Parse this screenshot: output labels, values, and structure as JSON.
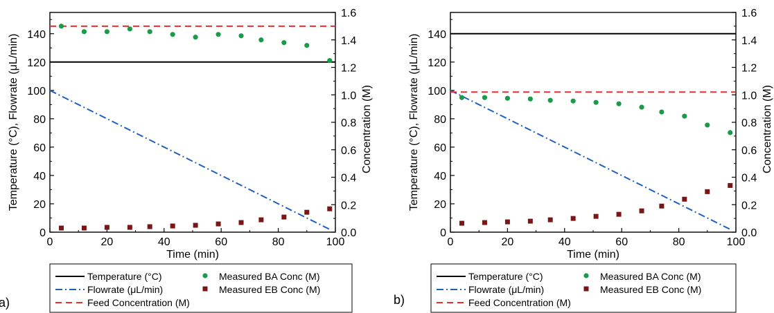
{
  "colors": {
    "temperature": "#000000",
    "flowrate": "#1f5fbf",
    "feed": "#ee2a2a",
    "ba": "#1a9a4a",
    "eb": "#7a1616"
  },
  "legend": {
    "temperature": "Temperature (°C)",
    "flowrate": "Flowrate (μL/min)",
    "feed": "Feed Concentration (M)",
    "ba": "Measured BA Conc (M)",
    "eb": "Measured EB Conc (M)"
  },
  "chart_data": [
    {
      "panel": "a)",
      "type": "line",
      "xlabel": "Time (min)",
      "ylabel": "Temperature (°C), Flowrate (μL/min)",
      "y2label": "Concentration (M)",
      "xlim": [
        0,
        100
      ],
      "ylim": [
        0,
        155
      ],
      "y2lim": [
        0,
        1.6
      ],
      "xticks": [
        "0",
        "20",
        "40",
        "60",
        "80",
        "100"
      ],
      "yticks": [
        "0",
        "20",
        "40",
        "60",
        "80",
        "100",
        "120",
        "140"
      ],
      "y2ticks": [
        "0.0",
        "0.2",
        "0.4",
        "0.6",
        "0.8",
        "1.0",
        "1.2",
        "1.4",
        "1.6"
      ],
      "series": [
        {
          "name": "Temperature (°C)",
          "axis": "left",
          "style": "solid",
          "x": [
            0,
            100
          ],
          "y": [
            120,
            120
          ]
        },
        {
          "name": "Flowrate (μL/min)",
          "axis": "left",
          "style": "dashdot",
          "x": [
            0,
            98
          ],
          "y": [
            100,
            2
          ]
        },
        {
          "name": "Feed Concentration (M)",
          "axis": "right",
          "style": "dashed",
          "x": [
            0,
            100
          ],
          "y": [
            1.5,
            1.5
          ]
        },
        {
          "name": "Measured BA Conc (M)",
          "axis": "right",
          "style": "circle",
          "x": [
            4,
            12,
            20,
            28,
            35,
            43,
            51,
            59,
            67,
            74,
            82,
            90,
            98
          ],
          "y": [
            1.5,
            1.46,
            1.46,
            1.48,
            1.46,
            1.44,
            1.42,
            1.44,
            1.43,
            1.4,
            1.38,
            1.36,
            1.25
          ]
        },
        {
          "name": "Measured EB Conc (M)",
          "axis": "right",
          "style": "square",
          "x": [
            4,
            12,
            20,
            28,
            35,
            43,
            51,
            59,
            67,
            74,
            82,
            90,
            98
          ],
          "y": [
            0.03,
            0.03,
            0.035,
            0.035,
            0.04,
            0.045,
            0.05,
            0.06,
            0.07,
            0.09,
            0.11,
            0.145,
            0.17
          ]
        }
      ]
    },
    {
      "panel": "b)",
      "type": "line",
      "xlabel": "Time (min)",
      "ylabel": "Temperature (°C), Flowrate (μL/min)",
      "y2label": "Concentration (M)",
      "xlim": [
        0,
        100
      ],
      "ylim": [
        0,
        155
      ],
      "y2lim": [
        0,
        1.6
      ],
      "xticks": [
        "0",
        "20",
        "40",
        "60",
        "80",
        "100"
      ],
      "yticks": [
        "0",
        "20",
        "40",
        "60",
        "80",
        "100",
        "120",
        "140"
      ],
      "y2ticks": [
        "0.0",
        "0.2",
        "0.4",
        "0.6",
        "0.8",
        "1.0",
        "1.2",
        "1.4",
        "1.6"
      ],
      "series": [
        {
          "name": "Temperature (°C)",
          "axis": "left",
          "style": "solid",
          "x": [
            0,
            100
          ],
          "y": [
            140,
            140
          ]
        },
        {
          "name": "Flowrate (μL/min)",
          "axis": "left",
          "style": "dashdot",
          "x": [
            0,
            98
          ],
          "y": [
            100,
            2
          ]
        },
        {
          "name": "Feed Concentration (M)",
          "axis": "right",
          "style": "dashed",
          "x": [
            0,
            100
          ],
          "y": [
            1.02,
            1.02
          ]
        },
        {
          "name": "Measured BA Conc (M)",
          "axis": "right",
          "style": "circle",
          "x": [
            4,
            12,
            20,
            28,
            35,
            43,
            51,
            59,
            67,
            74,
            82,
            90,
            98
          ],
          "y": [
            0.98,
            0.98,
            0.975,
            0.97,
            0.96,
            0.955,
            0.945,
            0.935,
            0.91,
            0.875,
            0.845,
            0.78,
            0.725
          ]
        },
        {
          "name": "Measured EB Conc (M)",
          "axis": "right",
          "style": "square",
          "x": [
            4,
            12,
            20,
            28,
            35,
            43,
            51,
            59,
            67,
            74,
            82,
            90,
            98
          ],
          "y": [
            0.065,
            0.07,
            0.075,
            0.08,
            0.09,
            0.1,
            0.115,
            0.13,
            0.155,
            0.19,
            0.24,
            0.295,
            0.34
          ]
        }
      ]
    }
  ]
}
